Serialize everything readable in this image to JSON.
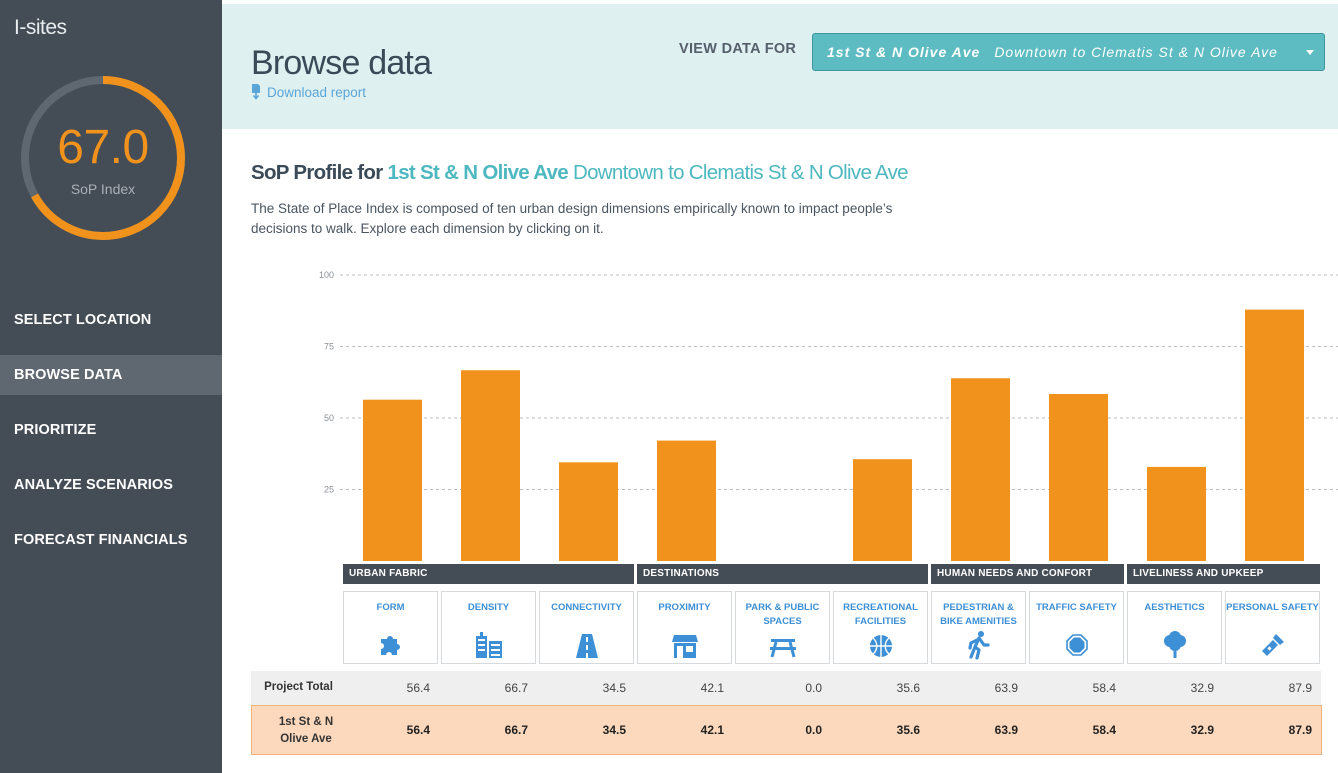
{
  "app": {
    "title": "I-sites"
  },
  "gauge": {
    "value": "67.0",
    "fraction": 0.67,
    "label": "SoP Index"
  },
  "nav": [
    {
      "label": "SELECT LOCATION",
      "active": false
    },
    {
      "label": "BROWSE DATA",
      "active": true
    },
    {
      "label": "PRIORITIZE",
      "active": false
    },
    {
      "label": "ANALYZE SCENARIOS",
      "active": false
    },
    {
      "label": "FORECAST FINANCIALS",
      "active": false
    }
  ],
  "header": {
    "title": "Browse data",
    "download_label": "Download report",
    "view_label": "VIEW DATA FOR",
    "selected_location": "1st St & N Olive Ave",
    "selected_segment": "Downtown to Clematis St & N Olive Ave"
  },
  "profile": {
    "prefix": "SoP Profile for",
    "location": "1st St & N Olive Ave",
    "segment": "Downtown to Clematis St & N Olive Ave",
    "description": "The State of Place Index is composed of ten urban design dimensions empirically known to impact people’s decisions to walk. Explore each dimension by clicking on it."
  },
  "chart_data": {
    "type": "bar",
    "categories": [
      "FORM",
      "DENSITY",
      "CONNECTIVITY",
      "PROXIMITY",
      "PARK & PUBLIC SPACES",
      "RECREATIONAL FACILITIES",
      "PEDESTRIAN & BIKE AMENITIES",
      "TRAFFIC SAFETY",
      "AESTHETICS",
      "PERSONAL SAFETY"
    ],
    "values": [
      56.4,
      66.7,
      34.5,
      42.1,
      0.0,
      35.6,
      63.9,
      58.4,
      32.9,
      87.9
    ],
    "ylim": [
      0,
      100
    ],
    "yticks": [
      25,
      50,
      75,
      100
    ],
    "grid": true,
    "bar_color": "#f0921c"
  },
  "groups": [
    {
      "label": "URBAN FABRIC"
    },
    {
      "label": "DESTINATIONS"
    },
    {
      "label": "HUMAN NEEDS AND CONFORT"
    },
    {
      "label": "LIVELINESS AND UPKEEP"
    }
  ],
  "dimensions": [
    {
      "label": "FORM",
      "icon": "puzzle-icon"
    },
    {
      "label": "DENSITY",
      "icon": "buildings-icon"
    },
    {
      "label": "CONNECTIVITY",
      "icon": "road-icon"
    },
    {
      "label": "PROXIMITY",
      "icon": "storefront-icon"
    },
    {
      "label": "PARK & PUBLIC SPACES",
      "icon": "picnic-table-icon"
    },
    {
      "label": "RECREATIONAL FACILITIES",
      "icon": "basketball-icon"
    },
    {
      "label": "PEDESTRIAN & BIKE AMENITIES",
      "icon": "walking-person-icon"
    },
    {
      "label": "TRAFFIC SAFETY",
      "icon": "stop-sign-icon"
    },
    {
      "label": "AESTHETICS",
      "icon": "tree-icon"
    },
    {
      "label": "PERSONAL SAFETY",
      "icon": "flashlight-icon"
    }
  ],
  "table": {
    "total_label": "Project Total",
    "total_values": [
      "56.4",
      "66.7",
      "34.5",
      "42.1",
      "0.0",
      "35.6",
      "63.9",
      "58.4",
      "32.9",
      "87.9"
    ],
    "location_label": "1st St & N Olive Ave",
    "location_values": [
      "56.4",
      "66.7",
      "34.5",
      "42.1",
      "0.0",
      "35.6",
      "63.9",
      "58.4",
      "32.9",
      "87.9"
    ]
  },
  "colors": {
    "accent": "#f0921c",
    "teal": "#4db8bf",
    "sidebar": "#444c55",
    "icon_blue": "#3d8fd6"
  }
}
